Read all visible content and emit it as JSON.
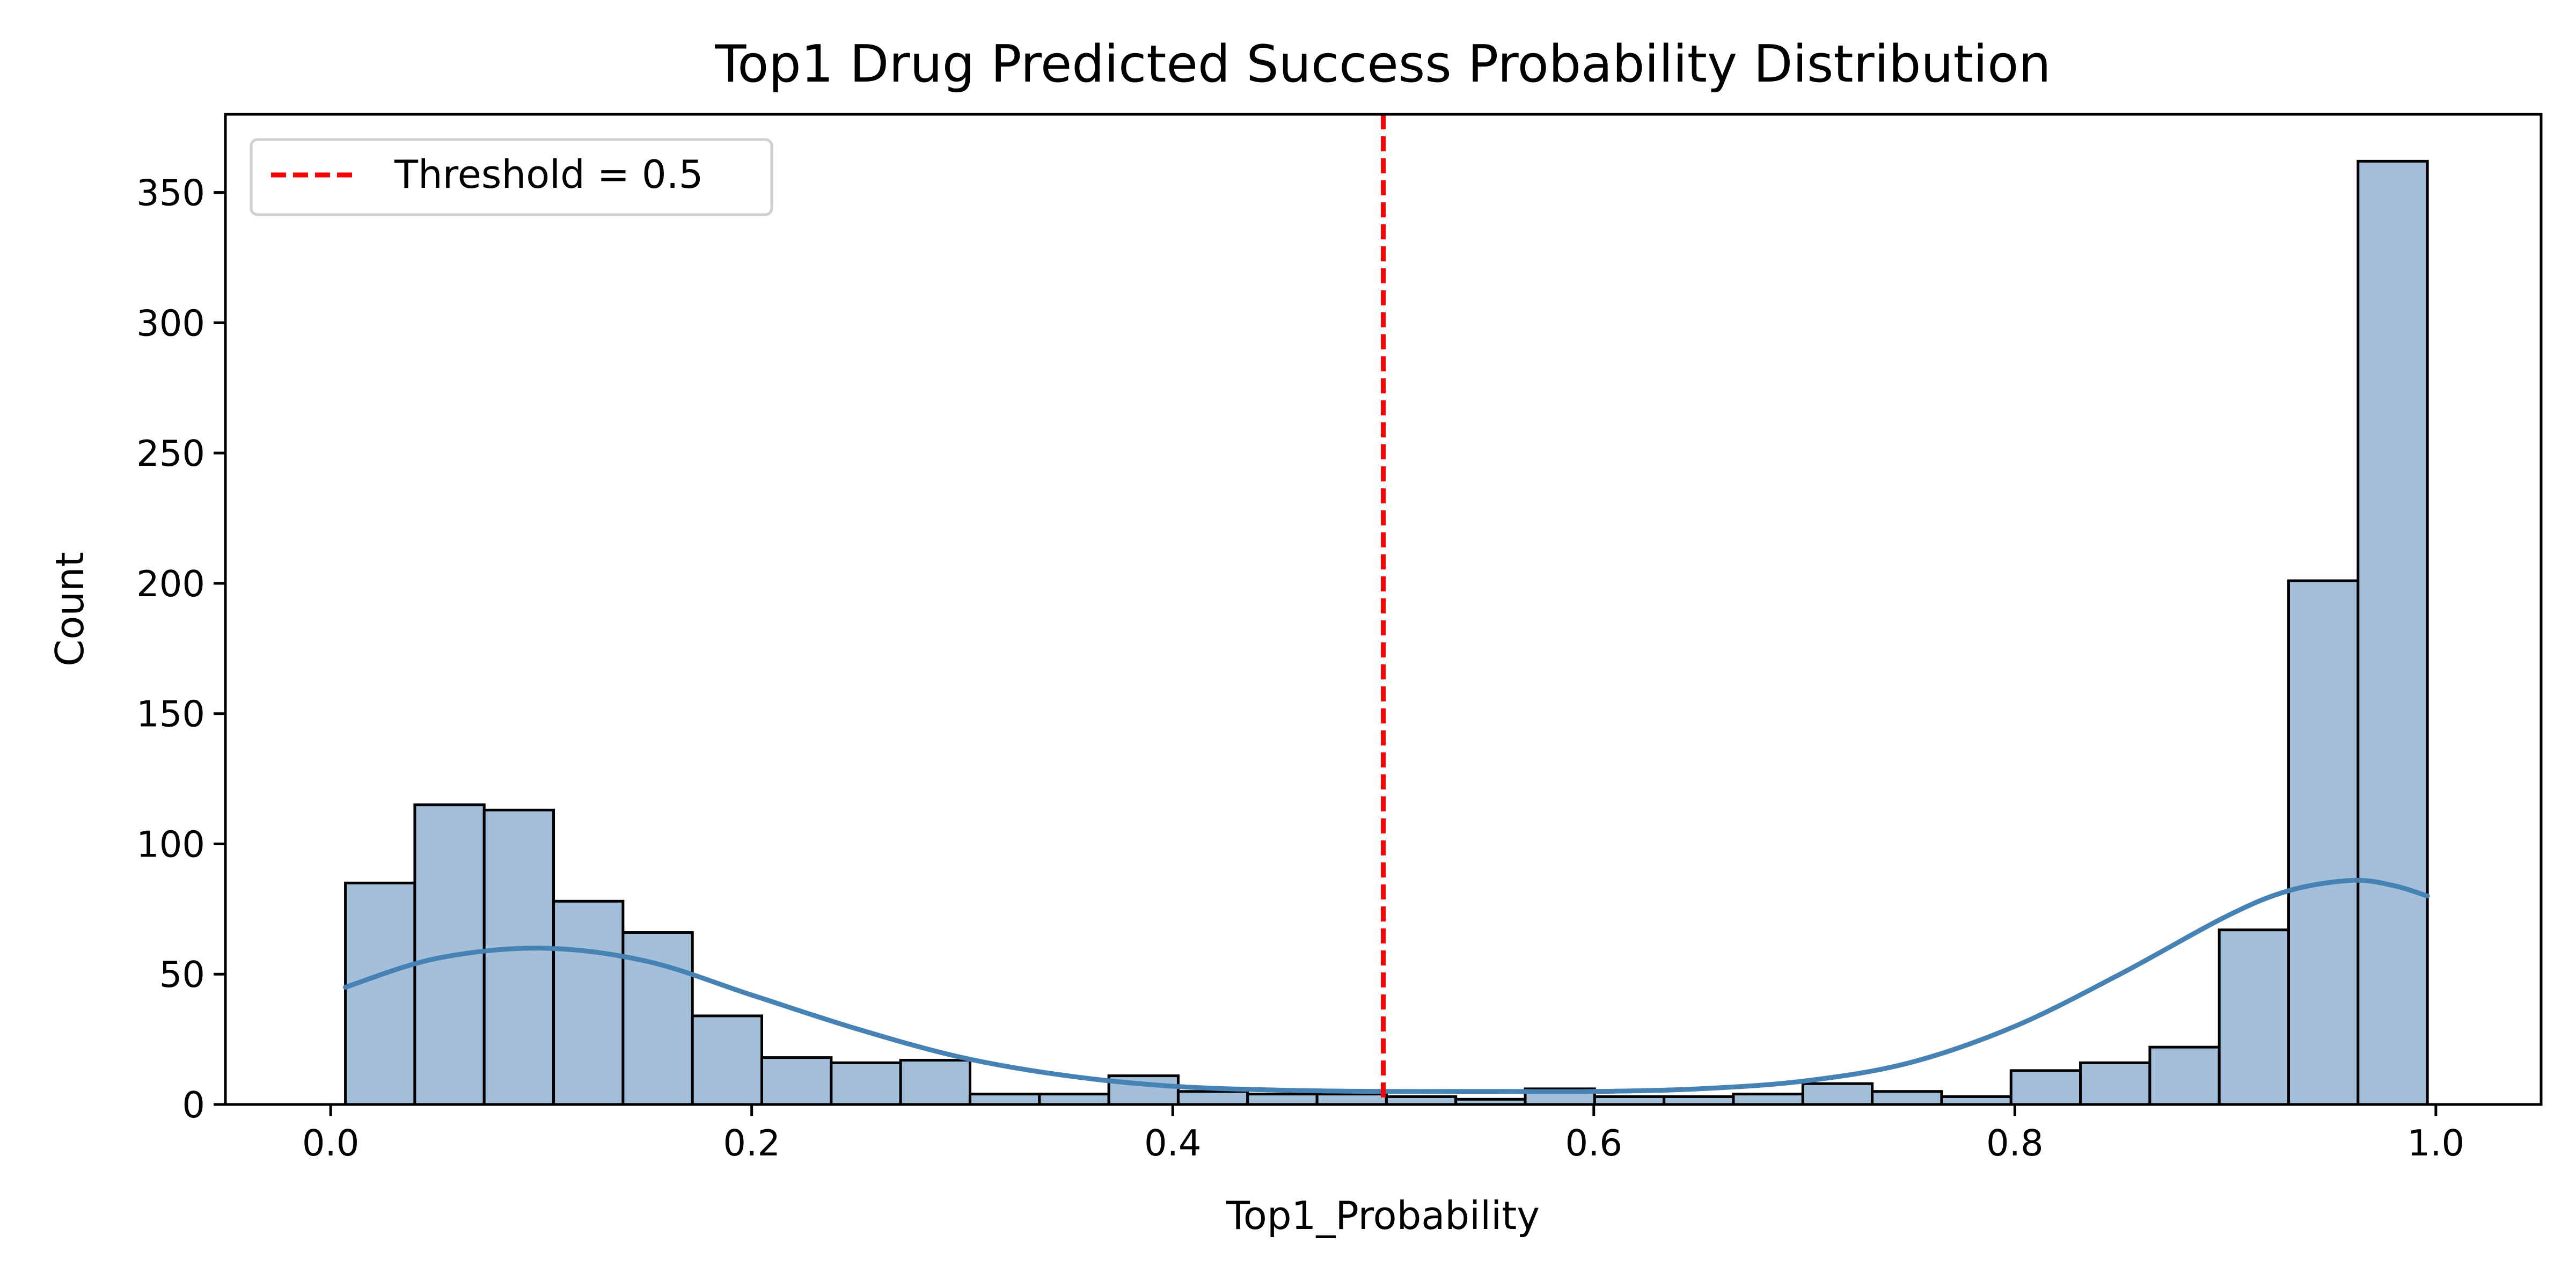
{
  "chart_data": {
    "type": "bar",
    "title": "Top1 Drug Predicted Success Probability Distribution",
    "xlabel": "Top1_Probability",
    "ylabel": "Count",
    "xlim": [
      -0.05,
      1.05
    ],
    "ylim": [
      0,
      380
    ],
    "xticks": [
      0.0,
      0.2,
      0.4,
      0.6,
      0.8,
      1.0
    ],
    "xtick_labels": [
      "0.0",
      "0.2",
      "0.4",
      "0.6",
      "0.8",
      "1.0"
    ],
    "yticks": [
      0,
      50,
      100,
      150,
      200,
      250,
      300,
      350
    ],
    "ytick_labels": [
      "0",
      "50",
      "100",
      "150",
      "200",
      "250",
      "300",
      "350"
    ],
    "grid": false,
    "legend": {
      "position": "top-left",
      "entries": [
        {
          "label": "Threshold = 0.5",
          "style": "dashed",
          "color": "#ff0000"
        }
      ]
    },
    "bins": {
      "start": 0.007,
      "end": 0.996,
      "count": 30
    },
    "values": [
      85,
      115,
      113,
      78,
      66,
      34,
      18,
      16,
      17,
      4,
      4,
      11,
      5,
      4,
      4,
      3,
      2,
      6,
      3,
      3,
      4,
      8,
      5,
      3,
      13,
      16,
      22,
      67,
      201,
      362
    ],
    "kde": {
      "x": [
        0.007,
        0.05,
        0.1,
        0.15,
        0.2,
        0.25,
        0.3,
        0.35,
        0.4,
        0.45,
        0.5,
        0.55,
        0.6,
        0.65,
        0.7,
        0.75,
        0.8,
        0.85,
        0.9,
        0.93,
        0.96,
        0.98,
        0.996
      ],
      "y": [
        45,
        56,
        60,
        55,
        42,
        29,
        18,
        11,
        7,
        5.5,
        5,
        5,
        5,
        6,
        9,
        16,
        30,
        50,
        72,
        82,
        86,
        84,
        80
      ]
    },
    "threshold": {
      "x": 0.5,
      "label": "Threshold = 0.5"
    },
    "colors": {
      "bar_fill": "#a3bfd9",
      "bar_edge": "#000000",
      "kde_line": "#4682b4",
      "threshold_line": "#ff0000"
    }
  }
}
